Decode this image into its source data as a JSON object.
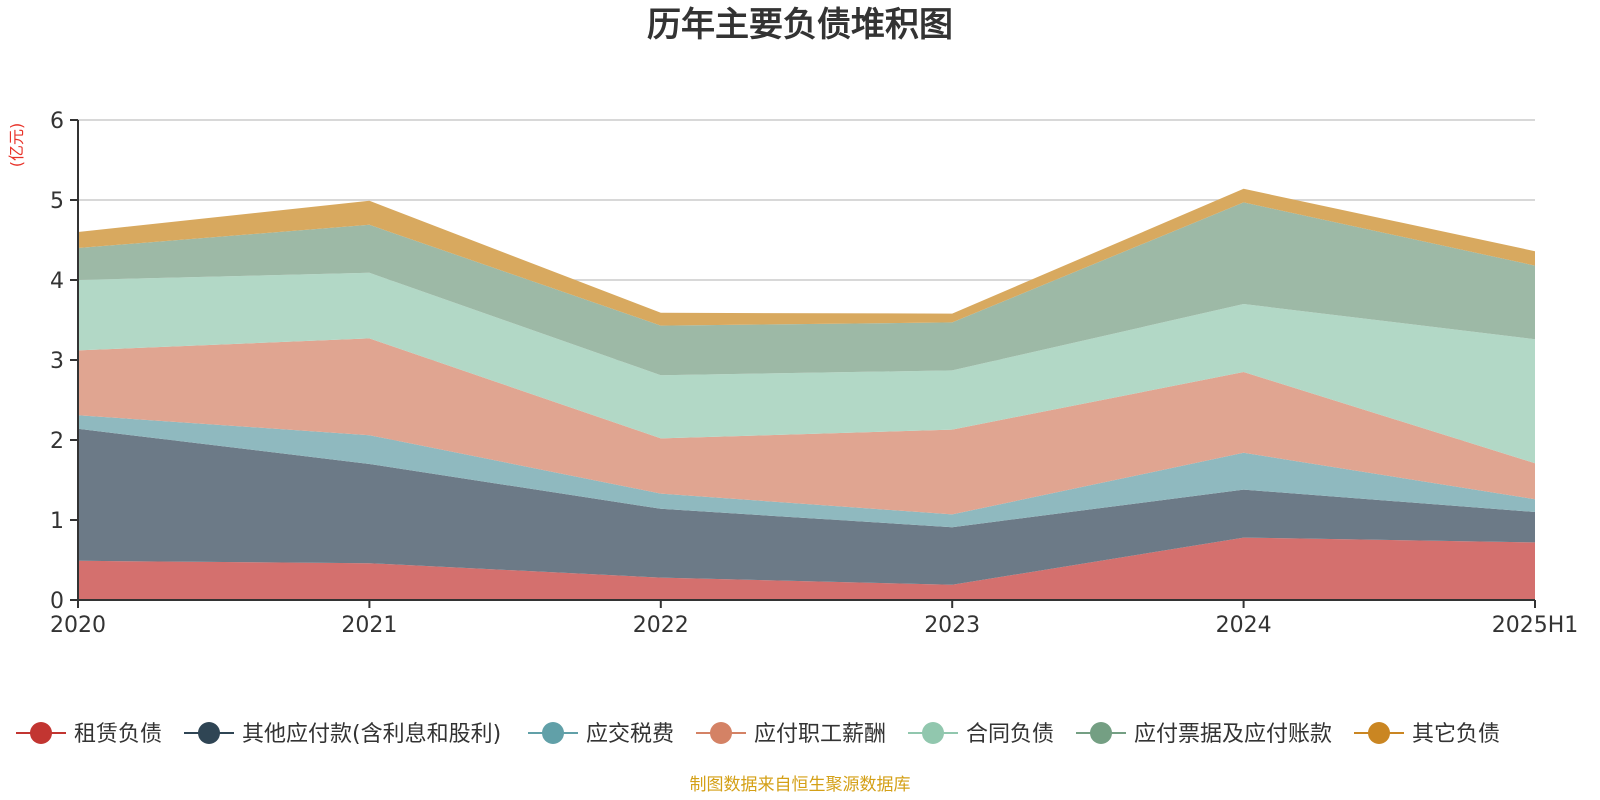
{
  "chart_data": {
    "type": "area",
    "stacked": true,
    "title": "历年主要负债堆积图",
    "unit_label": "(亿元)",
    "source_note": "制图数据来自恒生聚源数据库",
    "categories": [
      "2020",
      "2021",
      "2022",
      "2023",
      "2024",
      "2025H1"
    ],
    "ylim": [
      0,
      6
    ],
    "yticks": [
      "0",
      "1",
      "2",
      "3",
      "4",
      "5",
      "6"
    ],
    "grid": true,
    "legend_position": "bottom",
    "series": [
      {
        "name": "租赁负债",
        "color": "#c23531",
        "fill": "#d4706e",
        "values": [
          0.49,
          0.46,
          0.28,
          0.19,
          0.78,
          0.72
        ]
      },
      {
        "name": "其他应付款(含利息和股利)",
        "color": "#2f4554",
        "fill": "#6c7a87",
        "values": [
          1.65,
          1.24,
          0.86,
          0.72,
          0.6,
          0.38
        ]
      },
      {
        "name": "应交税费",
        "color": "#61a0a8",
        "fill": "#8fb9bf",
        "values": [
          0.17,
          0.36,
          0.19,
          0.16,
          0.46,
          0.16
        ]
      },
      {
        "name": "应付职工薪酬",
        "color": "#d48265",
        "fill": "#e0a591",
        "values": [
          0.81,
          1.21,
          0.69,
          1.06,
          1.01,
          0.45
        ]
      },
      {
        "name": "合同负债",
        "color": "#91c7ae",
        "fill": "#b2d8c6",
        "values": [
          0.88,
          0.82,
          0.79,
          0.74,
          0.85,
          1.55
        ]
      },
      {
        "name": "应付票据及应付账款",
        "color": "#749f83",
        "fill": "#9db9a6",
        "values": [
          0.4,
          0.6,
          0.62,
          0.6,
          1.27,
          0.92
        ]
      },
      {
        "name": "其它负债",
        "color": "#ca8622",
        "fill": "#d8a95f",
        "values": [
          0.2,
          0.3,
          0.16,
          0.11,
          0.17,
          0.18
        ]
      }
    ]
  }
}
